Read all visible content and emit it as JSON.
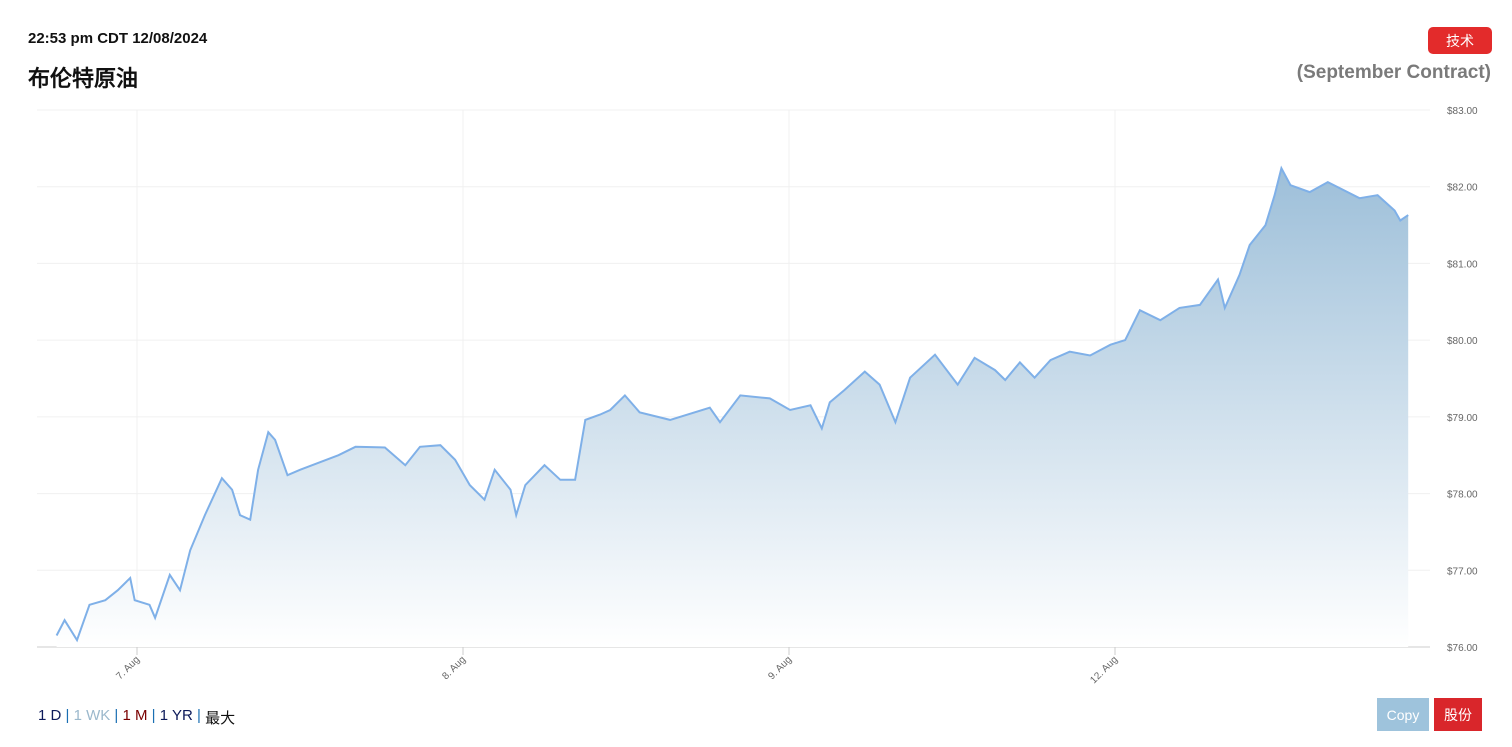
{
  "header": {
    "timestamp": "22:53 pm CDT 12/08/2024",
    "title": "布伦特原油",
    "contract": "(September Contract)",
    "tech_button": "技术"
  },
  "footer": {
    "ranges": [
      "1 D",
      "1 WK",
      "1 M",
      "1 YR",
      "最大"
    ],
    "separator": "|",
    "copy_button": "Copy",
    "share_button": "股份"
  },
  "colors": {
    "line": "#7fb0e8",
    "fill_top": "#9dbfd9",
    "fill_bottom": "#ffffff",
    "tech_button": "#e32b2b",
    "share_button": "#d9262b",
    "copy_button": "#9ec3dc"
  },
  "chart_data": {
    "type": "area",
    "title": "",
    "xlabel": "",
    "ylabel": "",
    "ylim": [
      76,
      83
    ],
    "grid": true,
    "y_ticks": [
      "$76.00",
      "$77.00",
      "$78.00",
      "$79.00",
      "$80.00",
      "$81.00",
      "$82.00",
      "$83.00"
    ],
    "x_ticks": [
      {
        "date": "08-07",
        "label": "7. Aug"
      },
      {
        "date": "08-08",
        "label": "8. Aug"
      },
      {
        "date": "08-09",
        "label": "9. Aug"
      },
      {
        "date": "08-12",
        "label": "12. Aug"
      }
    ],
    "series": [
      {
        "points": [
          [
            "08-06 18:05",
            76.15
          ],
          [
            "08-06 18:40",
            76.35
          ],
          [
            "08-06 19:35",
            76.09
          ],
          [
            "08-06 20:30",
            76.55
          ],
          [
            "08-06 21:40",
            76.61
          ],
          [
            "08-06 22:35",
            76.74
          ],
          [
            "08-06 23:30",
            76.9
          ],
          [
            "08-06 23:50",
            76.61
          ],
          [
            "08-07 00:55",
            76.55
          ],
          [
            "08-07 01:20",
            76.38
          ],
          [
            "08-07 02:25",
            76.94
          ],
          [
            "08-07 03:10",
            76.74
          ],
          [
            "08-07 03:55",
            77.26
          ],
          [
            "08-07 05:00",
            77.72
          ],
          [
            "08-07 06:15",
            78.2
          ],
          [
            "08-07 07:00",
            78.05
          ],
          [
            "08-07 07:35",
            77.72
          ],
          [
            "08-07 08:20",
            77.66
          ],
          [
            "08-07 08:55",
            78.31
          ],
          [
            "08-07 09:40",
            78.8
          ],
          [
            "08-07 10:10",
            78.7
          ],
          [
            "08-07 11:05",
            78.24
          ],
          [
            "08-07 12:00",
            78.31
          ],
          [
            "08-07 13:30",
            78.41
          ],
          [
            "08-07 14:50",
            78.5
          ],
          [
            "08-07 16:05",
            78.61
          ],
          [
            "08-07 18:15",
            78.6
          ],
          [
            "08-07 19:45",
            78.37
          ],
          [
            "08-07 20:50",
            78.61
          ],
          [
            "08-07 22:20",
            78.63
          ],
          [
            "08-07 23:25",
            78.44
          ],
          [
            "08-08 00:30",
            78.11
          ],
          [
            "08-08 01:35",
            77.92
          ],
          [
            "08-08 02:20",
            78.31
          ],
          [
            "08-08 03:30",
            78.05
          ],
          [
            "08-08 03:55",
            77.72
          ],
          [
            "08-08 04:35",
            78.11
          ],
          [
            "08-08 06:00",
            78.37
          ],
          [
            "08-08 07:10",
            78.18
          ],
          [
            "08-08 08:15",
            78.18
          ],
          [
            "08-08 09:00",
            78.96
          ],
          [
            "08-08 10:05",
            79.03
          ],
          [
            "08-08 10:50",
            79.09
          ],
          [
            "08-08 11:55",
            79.28
          ],
          [
            "08-08 13:00",
            79.06
          ],
          [
            "08-08 15:15",
            78.96
          ],
          [
            "08-08 18:10",
            79.12
          ],
          [
            "08-08 18:55",
            78.93
          ],
          [
            "08-08 20:25",
            79.28
          ],
          [
            "08-08 22:35",
            79.24
          ],
          [
            "08-09 00:05",
            79.09
          ],
          [
            "08-09 01:35",
            79.15
          ],
          [
            "08-09 02:25",
            78.85
          ],
          [
            "08-09 03:00",
            79.19
          ],
          [
            "08-09 04:05",
            79.35
          ],
          [
            "08-09 05:35",
            79.59
          ],
          [
            "08-09 06:40",
            79.42
          ],
          [
            "08-09 07:50",
            78.93
          ],
          [
            "08-09 08:55",
            79.51
          ],
          [
            "08-09 10:45",
            79.81
          ],
          [
            "08-09 12:25",
            79.42
          ],
          [
            "08-09 13:40",
            79.77
          ],
          [
            "08-09 15:10",
            79.61
          ],
          [
            "08-09 15:55",
            79.48
          ],
          [
            "08-09 17:00",
            79.71
          ],
          [
            "08-09 18:05",
            79.51
          ],
          [
            "08-09 19:15",
            79.74
          ],
          [
            "08-09 20:40",
            79.85
          ],
          [
            "08-09 22:10",
            79.8
          ],
          [
            "08-09 23:40",
            79.94
          ],
          [
            "08-12 00:45",
            80.0
          ],
          [
            "08-12 01:50",
            80.39
          ],
          [
            "08-12 03:20",
            80.26
          ],
          [
            "08-12 04:45",
            80.42
          ],
          [
            "08-12 06:15",
            80.46
          ],
          [
            "08-12 07:35",
            80.79
          ],
          [
            "08-12 08:05",
            80.42
          ],
          [
            "08-12 09:10",
            80.85
          ],
          [
            "08-12 09:55",
            81.24
          ],
          [
            "08-12 11:05",
            81.5
          ],
          [
            "08-12 11:45",
            81.89
          ],
          [
            "08-12 12:15",
            82.24
          ],
          [
            "08-12 12:55",
            82.02
          ],
          [
            "08-12 14:20",
            81.93
          ],
          [
            "08-12 15:40",
            82.06
          ],
          [
            "08-12 18:00",
            81.85
          ],
          [
            "08-12 19:20",
            81.89
          ],
          [
            "08-12 20:35",
            81.69
          ],
          [
            "08-12 21:00",
            81.56
          ],
          [
            "08-12 21:35",
            81.63
          ]
        ]
      }
    ]
  }
}
